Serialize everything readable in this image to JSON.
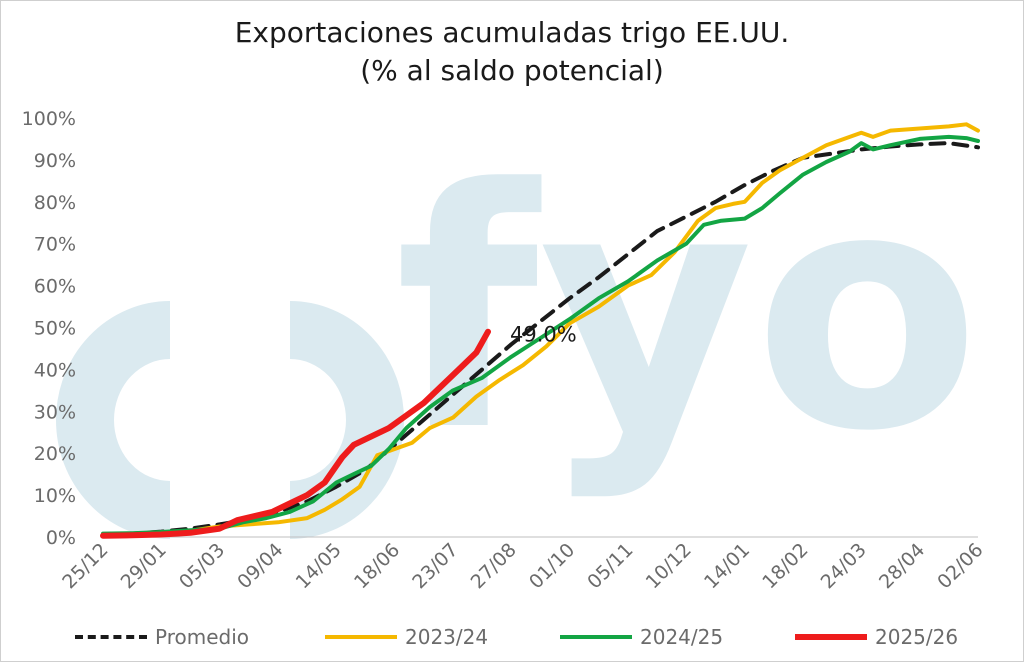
{
  "chart_data": {
    "type": "line",
    "title": "Exportaciones acumuladas trigo EE.UU.",
    "subtitle": "(% al saldo potencial)",
    "watermark": "fyo",
    "ylim": [
      0,
      100
    ],
    "yticks": [
      "0%",
      "10%",
      "20%",
      "30%",
      "40%",
      "50%",
      "60%",
      "70%",
      "80%",
      "90%",
      "100%"
    ],
    "xticks": [
      "25/12",
      "29/01",
      "05/03",
      "09/04",
      "14/05",
      "18/06",
      "23/07",
      "27/08",
      "01/10",
      "05/11",
      "10/12",
      "14/01",
      "18/02",
      "24/03",
      "28/04",
      "02/06"
    ],
    "grid": false,
    "legend_position": "bottom",
    "annotation": "49.0%",
    "series": [
      {
        "name": "Promedio",
        "color": "#1a1a1a",
        "dash": true,
        "x": [
          0,
          0.5,
          1,
          1.5,
          2,
          2.5,
          3,
          3.5,
          4,
          4.5,
          5,
          5.5,
          6,
          6.5,
          7,
          7.5,
          8,
          8.5,
          9,
          9.5,
          10,
          10.5,
          11,
          11.5,
          12,
          12.5,
          13,
          13.5,
          14,
          14.5,
          15
        ],
        "values": [
          0.5,
          0.8,
          1.3,
          2,
          3,
          4.2,
          6,
          8.5,
          12,
          16,
          22,
          28,
          34,
          40,
          46,
          51.5,
          57,
          62,
          67.5,
          73,
          76.5,
          80,
          84,
          87.5,
          90.5,
          91.5,
          92.5,
          93.2,
          93.7,
          94,
          93
        ]
      },
      {
        "name": "2023/24",
        "color": "#f5b800",
        "dash": false,
        "x": [
          0,
          0.5,
          1,
          1.5,
          2,
          2.5,
          3,
          3.5,
          3.8,
          4.1,
          4.4,
          4.7,
          5,
          5.3,
          5.6,
          6,
          6.4,
          6.8,
          7.2,
          7.6,
          8,
          8.5,
          9,
          9.4,
          9.8,
          10.2,
          10.5,
          10.8,
          11,
          11.3,
          11.6,
          12,
          12.4,
          12.8,
          13,
          13.2,
          13.5,
          14,
          14.5,
          14.8,
          15
        ],
        "values": [
          0.5,
          0.6,
          1,
          1.5,
          2.5,
          3,
          3.5,
          4.5,
          6.5,
          9,
          12,
          19.5,
          21,
          22.5,
          26,
          28.5,
          33.5,
          37.5,
          41,
          45.5,
          51,
          55,
          60,
          62.5,
          68,
          75.5,
          78.5,
          79.5,
          80,
          84.5,
          87.5,
          90.5,
          93.5,
          95.5,
          96.5,
          95.5,
          97,
          97.5,
          98,
          98.5,
          97
        ]
      },
      {
        "name": "2024/25",
        "color": "#13a544",
        "dash": false,
        "x": [
          0,
          0.5,
          1,
          1.5,
          2,
          2.4,
          2.8,
          3.2,
          3.6,
          4,
          4.3,
          4.6,
          4.9,
          5.2,
          5.6,
          6,
          6.5,
          7,
          7.5,
          8,
          8.5,
          9,
          9.5,
          10,
          10.3,
          10.6,
          11,
          11.3,
          11.6,
          12,
          12.4,
          12.8,
          13,
          13.2,
          13.5,
          14,
          14.5,
          14.8,
          15
        ],
        "values": [
          0.8,
          0.9,
          1.2,
          1.6,
          2,
          3.5,
          4.5,
          6,
          8.5,
          13,
          15,
          17,
          21,
          26,
          31,
          35,
          38,
          43,
          47.5,
          52,
          57,
          61,
          66,
          70,
          74.5,
          75.5,
          76,
          78.5,
          82,
          86.5,
          89.5,
          92,
          94,
          92.5,
          93.5,
          95,
          95.5,
          95.2,
          94.5
        ]
      },
      {
        "name": "2025/26",
        "color": "#ee1c1c",
        "dash": false,
        "x": [
          0,
          0.5,
          1,
          1.5,
          2,
          2.3,
          2.6,
          2.9,
          3.2,
          3.5,
          3.8,
          4.1,
          4.3,
          4.6,
          4.9,
          5.2,
          5.5,
          5.8,
          6.1,
          6.4,
          6.6
        ],
        "values": [
          0.3,
          0.4,
          0.6,
          1,
          2,
          4,
          5,
          6,
          8,
          10,
          13,
          19,
          22,
          24,
          26,
          29,
          32,
          36,
          40,
          44,
          49
        ]
      }
    ]
  }
}
